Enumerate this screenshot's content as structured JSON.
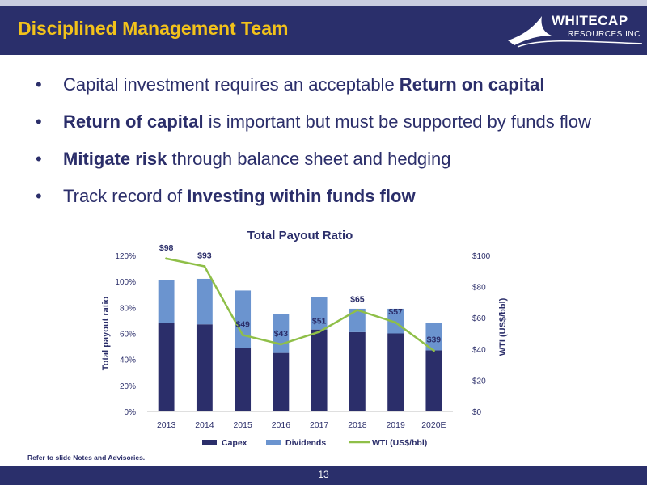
{
  "header": {
    "title": "Disciplined Management Team"
  },
  "logo": {
    "line1": "WHITECAP",
    "line2": "RESOURCES INC"
  },
  "bullets": [
    {
      "pre": "Capital investment requires an acceptable ",
      "bold": "Return on capital",
      "post": ""
    },
    {
      "pre": "",
      "bold": "Return of capital",
      "post": " is important but must be supported by funds flow"
    },
    {
      "pre": "",
      "bold": "Mitigate risk",
      "post": " through balance sheet and hedging"
    },
    {
      "pre": "Track record of ",
      "bold": "Investing within funds flow",
      "post": ""
    }
  ],
  "chart_data": {
    "type": "bar",
    "title": "Total Payout Ratio",
    "ylabel": "Total payout ratio",
    "y2label": "WTI (US$/bbl)",
    "categories": [
      "2013",
      "2014",
      "2015",
      "2016",
      "2017",
      "2018",
      "2019",
      "2020E"
    ],
    "stacked": true,
    "series": [
      {
        "name": "Capex",
        "kind": "bar",
        "color": "#2b2e6a",
        "values": [
          68,
          67,
          49,
          45,
          63,
          61,
          60,
          47
        ]
      },
      {
        "name": "Dividends",
        "kind": "bar",
        "color": "#6b94cf",
        "values": [
          33,
          35,
          44,
          30,
          25,
          18,
          19,
          21
        ]
      },
      {
        "name": "WTI (US$/bbl)",
        "kind": "line",
        "axis": "right",
        "color": "#8fbf48",
        "values": [
          98,
          93,
          49,
          43,
          51,
          65,
          57,
          39
        ],
        "labels": [
          "$98",
          "$93",
          "$49",
          "$43",
          "$51",
          "$65",
          "$57",
          "$39"
        ]
      }
    ],
    "ylim": [
      0,
      120
    ],
    "yticks": [
      "0%",
      "20%",
      "40%",
      "60%",
      "80%",
      "100%",
      "120%"
    ],
    "y2lim": [
      0,
      100
    ],
    "y2ticks": [
      "$0",
      "$20",
      "$40",
      "$60",
      "$80",
      "$100"
    ],
    "legend": "bottom",
    "grid": false
  },
  "footnote": "Refer to slide Notes and Advisories.",
  "page_number": "13"
}
